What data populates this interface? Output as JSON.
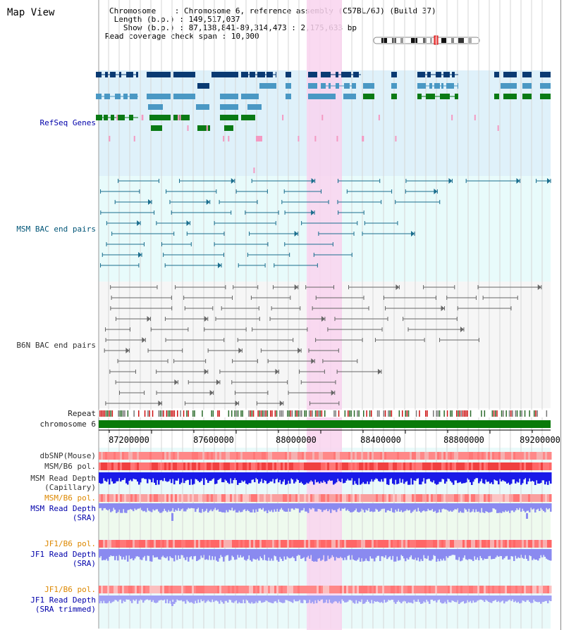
{
  "header": {
    "title": "Map View",
    "chromosome_label": "Chromosome",
    "chromosome_value": "Chromosome 6, reference assembly (C57BL/6J) (Build 37)",
    "length_label": "Length (b.p.)",
    "length_value": "149,517,037",
    "show_label": "Show (b.p.)",
    "show_value": "87,138,841-89,314,473 : 2,175,633 bp",
    "coverage_label": "Read coverage check span",
    "coverage_value": "10,000"
  },
  "tracks": {
    "refseq": "RefSeq Genes",
    "msm_bac": "MSM BAC end pairs",
    "b6n_bac": "B6N BAC end pairs",
    "repeat": "Repeat",
    "chromosome": "chromosome 6",
    "dbsnp": "dbSNP(Mouse)",
    "msm_b6_pol_1": "MSM/B6 pol.",
    "msm_read_depth_cap_1": "MSM Read Depth",
    "msm_read_depth_cap_2": "(Capillary)",
    "msm_b6_pol_2": "MSM/B6 pol.",
    "msm_read_depth_sra_1": "MSM Read Depth",
    "msm_read_depth_sra_2": "(SRA)",
    "jf1_b6_pol_1": "JF1/B6 pol.",
    "jf1_read_depth_sra_1": "JF1 Read Depth",
    "jf1_read_depth_sra_2": "(SRA)",
    "jf1_b6_pol_2": "JF1/B6 pol.",
    "jf1_read_depth_trim_1": "JF1 Read Depth",
    "jf1_read_depth_trim_2": "(SRA trimmed)"
  },
  "axis": {
    "ticks": [
      "87200000",
      "87600000",
      "88000000",
      "88400000",
      "88800000",
      "89200000"
    ]
  },
  "colors": {
    "gene_bg": "#dff1fa",
    "msm_bg": "#e8fbfb",
    "b6n_bg": "#f6f6f6",
    "highlight": "#f9d3ef",
    "gene_dark": "#0a3a72",
    "gene_mid": "#4a98c4",
    "gene_green": "#0a7a14",
    "gene_pink": "#f49ac2",
    "msm_line": "#1a6e8e",
    "b6n_line": "#666666",
    "chromosome_bar": "#0a7a0a",
    "depth_blue": "#1a1ae8",
    "sra_blue": "#8a8af0",
    "pol_red": "#f04040",
    "pol_pink": "#f9a6a6"
  }
}
